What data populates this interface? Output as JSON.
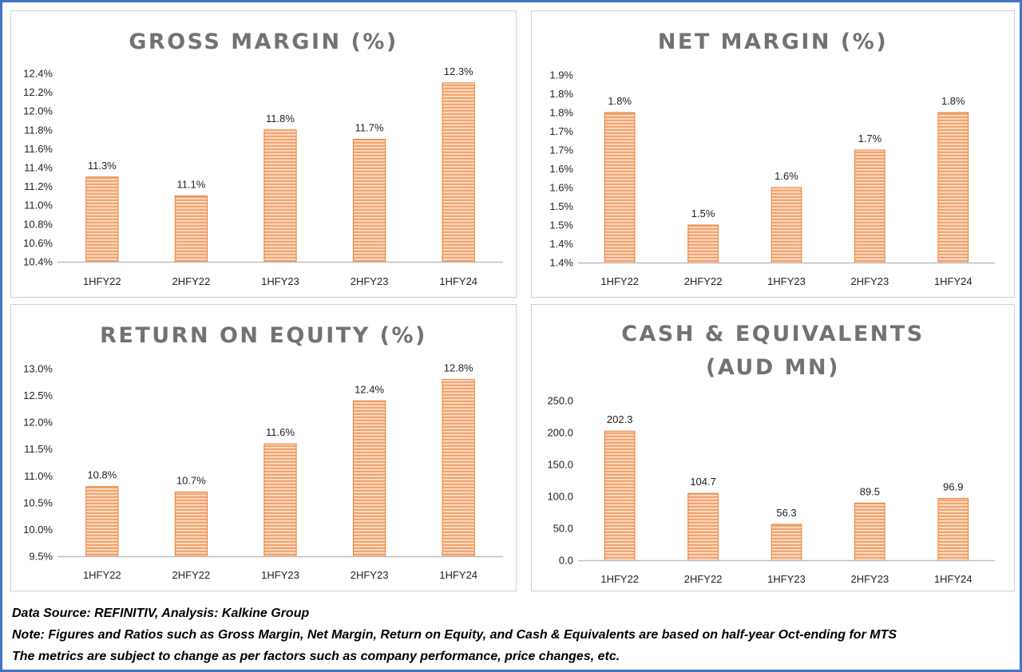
{
  "colors": {
    "frame_border": "#4472c4",
    "bar_fill": "#f4a46e",
    "bar_stripe": "#fde5d3",
    "bar_border": "#ed7d31",
    "title": "#767171",
    "axis": "#bfbfbf"
  },
  "chart_data": [
    {
      "type": "bar",
      "title": "GROSS MARGIN (%)",
      "categories": [
        "1HFY22",
        "2HFY22",
        "1HFY23",
        "2HFY23",
        "1HFY24"
      ],
      "values": [
        11.3,
        11.1,
        11.8,
        11.7,
        12.3
      ],
      "data_labels": [
        "11.3%",
        "11.1%",
        "11.8%",
        "11.7%",
        "12.3%"
      ],
      "ylim": [
        10.4,
        12.4
      ],
      "yticks": [
        10.4,
        10.6,
        10.8,
        11.0,
        11.2,
        11.4,
        11.6,
        11.8,
        12.0,
        12.2,
        12.4
      ],
      "ytick_labels": [
        "10.4%",
        "10.6%",
        "10.8%",
        "11.0%",
        "11.2%",
        "11.4%",
        "11.6%",
        "11.8%",
        "12.0%",
        "12.2%",
        "12.4%"
      ],
      "grid": false
    },
    {
      "type": "bar",
      "title": "NET MARGIN (%)",
      "categories": [
        "1HFY22",
        "2HFY22",
        "1HFY23",
        "2HFY23",
        "1HFY24"
      ],
      "values": [
        1.8,
        1.5,
        1.6,
        1.7,
        1.8
      ],
      "data_labels": [
        "1.8%",
        "1.5%",
        "1.6%",
        "1.7%",
        "1.8%"
      ],
      "ylim": [
        1.4,
        1.9
      ],
      "yticks": [
        1.4,
        1.45,
        1.5,
        1.55,
        1.6,
        1.65,
        1.7,
        1.75,
        1.8,
        1.85,
        1.9
      ],
      "ytick_labels": [
        "1.4%",
        "1.4%",
        "1.5%",
        "1.5%",
        "1.6%",
        "1.6%",
        "1.7%",
        "1.7%",
        "1.8%",
        "1.8%",
        "1.9%"
      ],
      "grid": false
    },
    {
      "type": "bar",
      "title": "RETURN ON EQUITY (%)",
      "categories": [
        "1HFY22",
        "2HFY22",
        "1HFY23",
        "2HFY23",
        "1HFY24"
      ],
      "values": [
        10.8,
        10.7,
        11.6,
        12.4,
        12.8
      ],
      "data_labels": [
        "10.8%",
        "10.7%",
        "11.6%",
        "12.4%",
        "12.8%"
      ],
      "ylim": [
        9.5,
        13.0
      ],
      "yticks": [
        9.5,
        10.0,
        10.5,
        11.0,
        11.5,
        12.0,
        12.5,
        13.0
      ],
      "ytick_labels": [
        "9.5%",
        "10.0%",
        "10.5%",
        "11.0%",
        "11.5%",
        "12.0%",
        "12.5%",
        "13.0%"
      ],
      "grid": false
    },
    {
      "type": "bar",
      "title_lines": [
        "CASH & EQUIVALENTS",
        "(AUD MN)"
      ],
      "categories": [
        "1HFY22",
        "2HFY22",
        "1HFY23",
        "2HFY23",
        "1HFY24"
      ],
      "values": [
        202.3,
        104.7,
        56.3,
        89.5,
        96.9
      ],
      "data_labels": [
        "202.3",
        "104.7",
        "56.3",
        "89.5",
        "96.9"
      ],
      "ylim": [
        0,
        250
      ],
      "yticks": [
        0,
        50,
        100,
        150,
        200,
        250
      ],
      "ytick_labels": [
        "0.0",
        "50.0",
        "100.0",
        "150.0",
        "200.0",
        "250.0"
      ],
      "grid": false
    }
  ],
  "footer": {
    "source": "Data Source: REFINITIV, Analysis: Kalkine Group",
    "note": "Note: Figures and Ratios such as Gross Margin, Net Margin, Return on Equity, and Cash & Equivalents are based on half-year Oct-ending for MTS",
    "disclaimer": "The metrics are subject to change as per factors such as company performance, price changes, etc."
  }
}
